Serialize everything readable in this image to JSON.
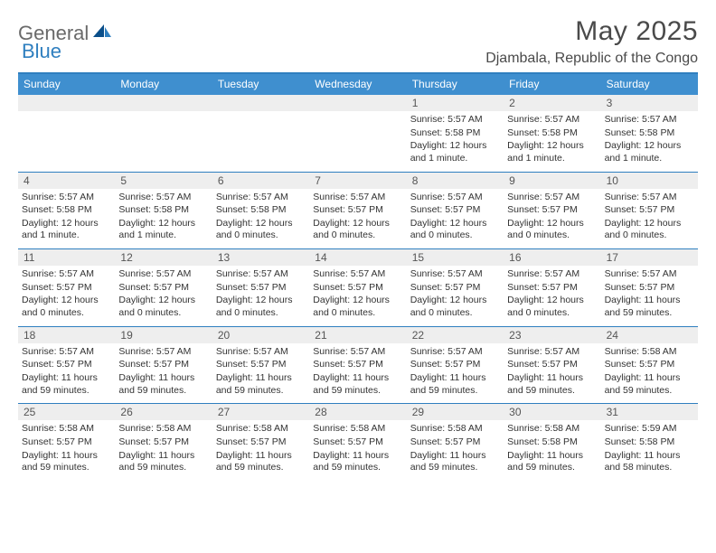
{
  "brand": {
    "word1": "General",
    "word2": "Blue"
  },
  "title": "May 2025",
  "location": "Djambala, Republic of the Congo",
  "colors": {
    "header_bg": "#3f8fcf",
    "border": "#2f7fbf",
    "daynum_bg": "#eeeeee",
    "text": "#333333",
    "title_text": "#4a4a4a"
  },
  "dayNames": [
    "Sunday",
    "Monday",
    "Tuesday",
    "Wednesday",
    "Thursday",
    "Friday",
    "Saturday"
  ],
  "weeks": [
    [
      null,
      null,
      null,
      null,
      {
        "n": "1",
        "sr": "Sunrise: 5:57 AM",
        "ss": "Sunset: 5:58 PM",
        "dl": "Daylight: 12 hours and 1 minute."
      },
      {
        "n": "2",
        "sr": "Sunrise: 5:57 AM",
        "ss": "Sunset: 5:58 PM",
        "dl": "Daylight: 12 hours and 1 minute."
      },
      {
        "n": "3",
        "sr": "Sunrise: 5:57 AM",
        "ss": "Sunset: 5:58 PM",
        "dl": "Daylight: 12 hours and 1 minute."
      }
    ],
    [
      {
        "n": "4",
        "sr": "Sunrise: 5:57 AM",
        "ss": "Sunset: 5:58 PM",
        "dl": "Daylight: 12 hours and 1 minute."
      },
      {
        "n": "5",
        "sr": "Sunrise: 5:57 AM",
        "ss": "Sunset: 5:58 PM",
        "dl": "Daylight: 12 hours and 1 minute."
      },
      {
        "n": "6",
        "sr": "Sunrise: 5:57 AM",
        "ss": "Sunset: 5:58 PM",
        "dl": "Daylight: 12 hours and 0 minutes."
      },
      {
        "n": "7",
        "sr": "Sunrise: 5:57 AM",
        "ss": "Sunset: 5:57 PM",
        "dl": "Daylight: 12 hours and 0 minutes."
      },
      {
        "n": "8",
        "sr": "Sunrise: 5:57 AM",
        "ss": "Sunset: 5:57 PM",
        "dl": "Daylight: 12 hours and 0 minutes."
      },
      {
        "n": "9",
        "sr": "Sunrise: 5:57 AM",
        "ss": "Sunset: 5:57 PM",
        "dl": "Daylight: 12 hours and 0 minutes."
      },
      {
        "n": "10",
        "sr": "Sunrise: 5:57 AM",
        "ss": "Sunset: 5:57 PM",
        "dl": "Daylight: 12 hours and 0 minutes."
      }
    ],
    [
      {
        "n": "11",
        "sr": "Sunrise: 5:57 AM",
        "ss": "Sunset: 5:57 PM",
        "dl": "Daylight: 12 hours and 0 minutes."
      },
      {
        "n": "12",
        "sr": "Sunrise: 5:57 AM",
        "ss": "Sunset: 5:57 PM",
        "dl": "Daylight: 12 hours and 0 minutes."
      },
      {
        "n": "13",
        "sr": "Sunrise: 5:57 AM",
        "ss": "Sunset: 5:57 PM",
        "dl": "Daylight: 12 hours and 0 minutes."
      },
      {
        "n": "14",
        "sr": "Sunrise: 5:57 AM",
        "ss": "Sunset: 5:57 PM",
        "dl": "Daylight: 12 hours and 0 minutes."
      },
      {
        "n": "15",
        "sr": "Sunrise: 5:57 AM",
        "ss": "Sunset: 5:57 PM",
        "dl": "Daylight: 12 hours and 0 minutes."
      },
      {
        "n": "16",
        "sr": "Sunrise: 5:57 AM",
        "ss": "Sunset: 5:57 PM",
        "dl": "Daylight: 12 hours and 0 minutes."
      },
      {
        "n": "17",
        "sr": "Sunrise: 5:57 AM",
        "ss": "Sunset: 5:57 PM",
        "dl": "Daylight: 11 hours and 59 minutes."
      }
    ],
    [
      {
        "n": "18",
        "sr": "Sunrise: 5:57 AM",
        "ss": "Sunset: 5:57 PM",
        "dl": "Daylight: 11 hours and 59 minutes."
      },
      {
        "n": "19",
        "sr": "Sunrise: 5:57 AM",
        "ss": "Sunset: 5:57 PM",
        "dl": "Daylight: 11 hours and 59 minutes."
      },
      {
        "n": "20",
        "sr": "Sunrise: 5:57 AM",
        "ss": "Sunset: 5:57 PM",
        "dl": "Daylight: 11 hours and 59 minutes."
      },
      {
        "n": "21",
        "sr": "Sunrise: 5:57 AM",
        "ss": "Sunset: 5:57 PM",
        "dl": "Daylight: 11 hours and 59 minutes."
      },
      {
        "n": "22",
        "sr": "Sunrise: 5:57 AM",
        "ss": "Sunset: 5:57 PM",
        "dl": "Daylight: 11 hours and 59 minutes."
      },
      {
        "n": "23",
        "sr": "Sunrise: 5:57 AM",
        "ss": "Sunset: 5:57 PM",
        "dl": "Daylight: 11 hours and 59 minutes."
      },
      {
        "n": "24",
        "sr": "Sunrise: 5:58 AM",
        "ss": "Sunset: 5:57 PM",
        "dl": "Daylight: 11 hours and 59 minutes."
      }
    ],
    [
      {
        "n": "25",
        "sr": "Sunrise: 5:58 AM",
        "ss": "Sunset: 5:57 PM",
        "dl": "Daylight: 11 hours and 59 minutes."
      },
      {
        "n": "26",
        "sr": "Sunrise: 5:58 AM",
        "ss": "Sunset: 5:57 PM",
        "dl": "Daylight: 11 hours and 59 minutes."
      },
      {
        "n": "27",
        "sr": "Sunrise: 5:58 AM",
        "ss": "Sunset: 5:57 PM",
        "dl": "Daylight: 11 hours and 59 minutes."
      },
      {
        "n": "28",
        "sr": "Sunrise: 5:58 AM",
        "ss": "Sunset: 5:57 PM",
        "dl": "Daylight: 11 hours and 59 minutes."
      },
      {
        "n": "29",
        "sr": "Sunrise: 5:58 AM",
        "ss": "Sunset: 5:57 PM",
        "dl": "Daylight: 11 hours and 59 minutes."
      },
      {
        "n": "30",
        "sr": "Sunrise: 5:58 AM",
        "ss": "Sunset: 5:58 PM",
        "dl": "Daylight: 11 hours and 59 minutes."
      },
      {
        "n": "31",
        "sr": "Sunrise: 5:59 AM",
        "ss": "Sunset: 5:58 PM",
        "dl": "Daylight: 11 hours and 58 minutes."
      }
    ]
  ]
}
